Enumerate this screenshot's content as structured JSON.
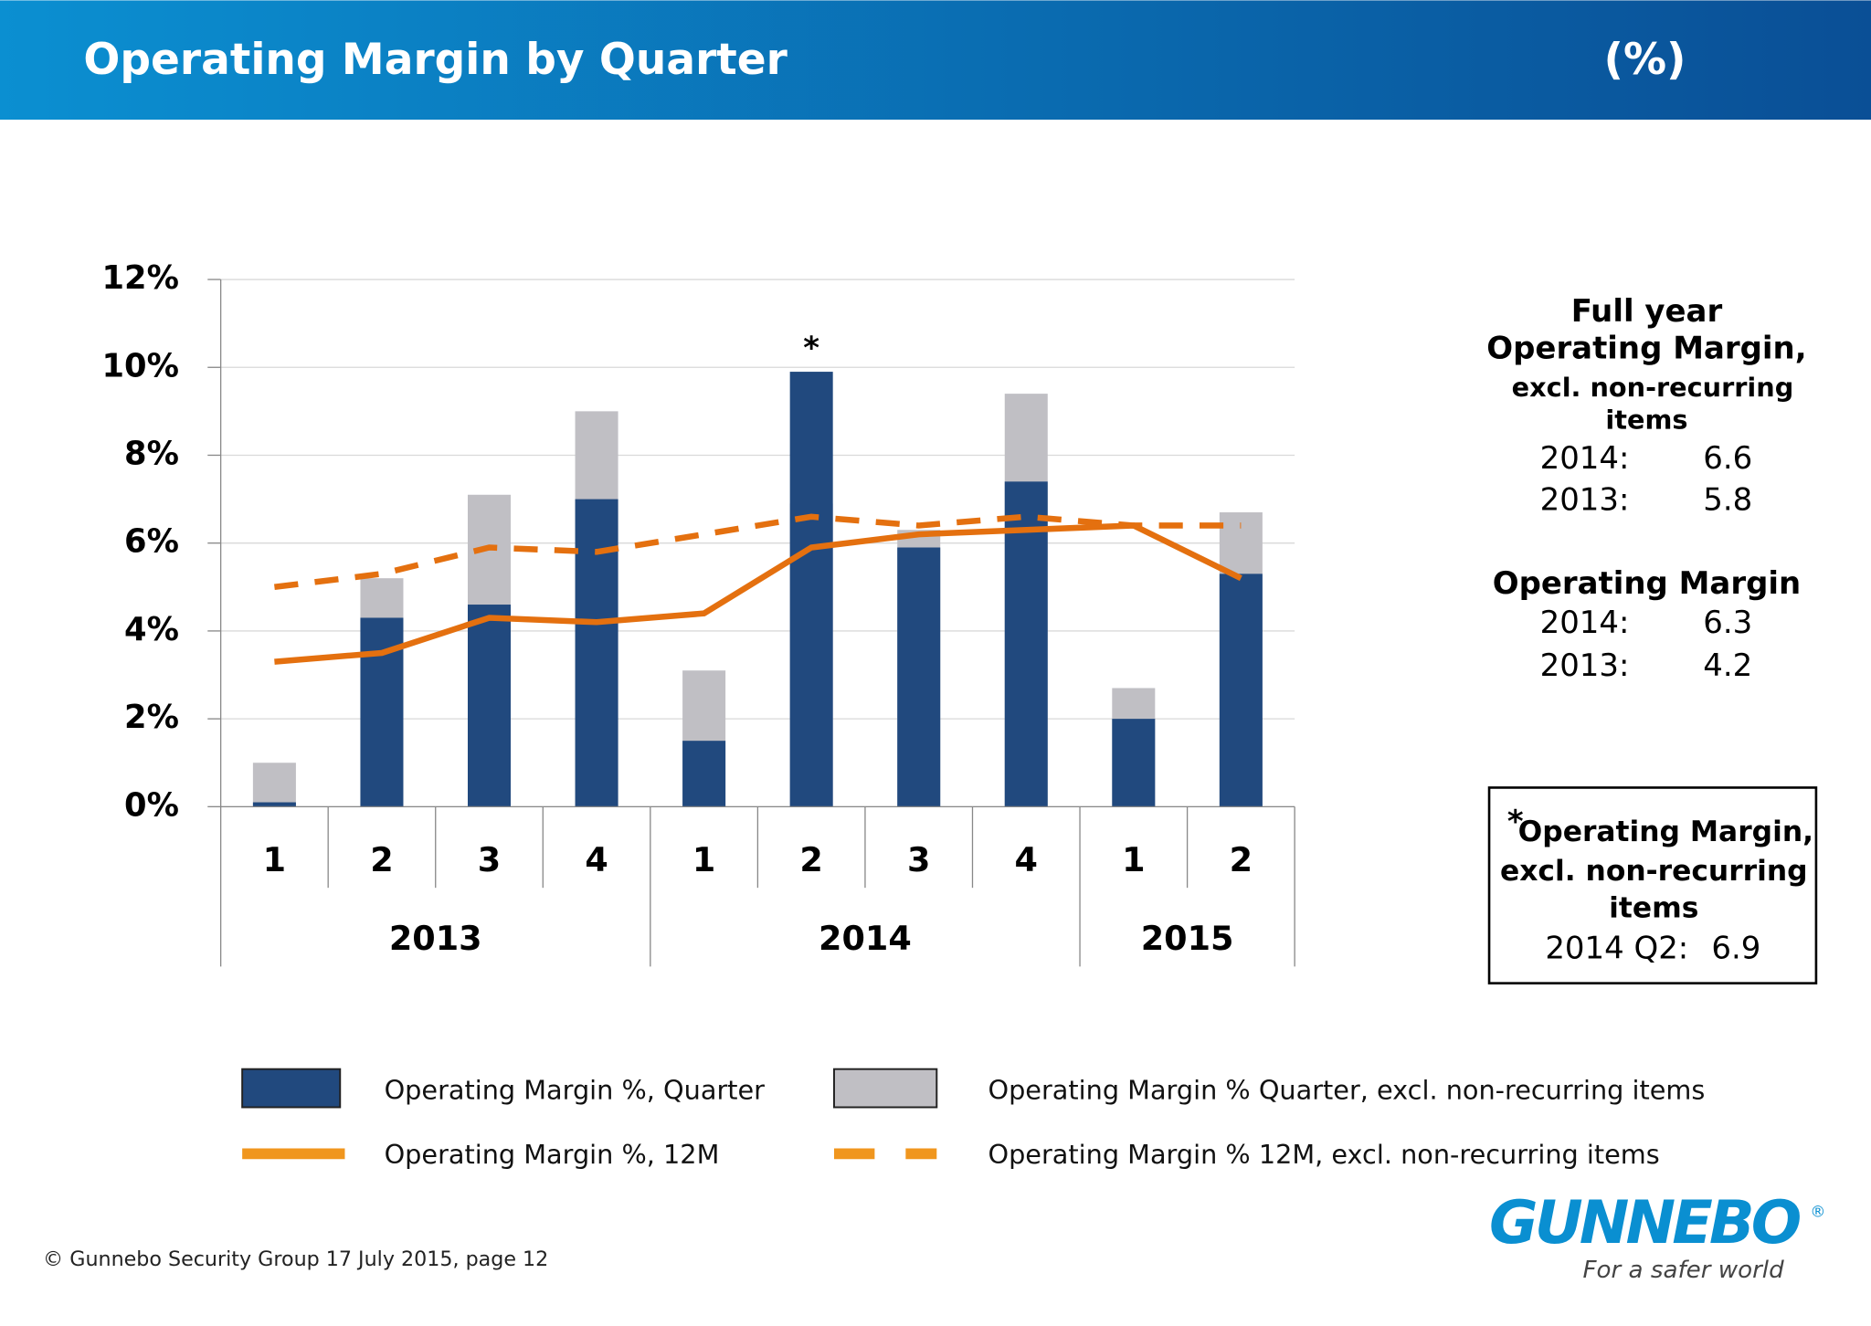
{
  "header": {
    "title": "Operating Margin by Quarter",
    "unit": "(%)"
  },
  "chart_data": {
    "type": "bar_line",
    "categories": [
      "1",
      "2",
      "3",
      "4",
      "1",
      "2",
      "3",
      "4",
      "1",
      "2"
    ],
    "category_groups": [
      "2013",
      "2013",
      "2013",
      "2013",
      "2014",
      "2014",
      "2014",
      "2014",
      "2015",
      "2015"
    ],
    "ylim": [
      0,
      12
    ],
    "yticks": [
      {
        "value": 0,
        "label": "0%"
      },
      {
        "value": 2,
        "label": "2%"
      },
      {
        "value": 4,
        "label": "4%"
      },
      {
        "value": 6,
        "label": "6%"
      },
      {
        "value": 8,
        "label": "8%"
      },
      {
        "value": 10,
        "label": "10%"
      },
      {
        "value": 12,
        "label": "12%"
      }
    ],
    "grid": true,
    "annotation": "*",
    "series": [
      {
        "name": "Operating Margin % Quarter, excl. non-recurring items",
        "kind": "bar",
        "color": "#c0bfc4",
        "values": [
          1.0,
          5.2,
          7.1,
          9.0,
          3.1,
          6.9,
          6.3,
          9.4,
          2.7,
          6.7
        ]
      },
      {
        "name": "Operating Margin %, Quarter",
        "kind": "bar",
        "color": "#21497e",
        "values": [
          0.1,
          4.3,
          4.6,
          7.0,
          1.5,
          9.9,
          5.9,
          7.4,
          2.0,
          5.3
        ]
      },
      {
        "name": "Operating Margin %, 12M",
        "kind": "line",
        "color": "#e4700f",
        "values": [
          3.3,
          3.5,
          4.3,
          4.2,
          4.4,
          5.9,
          6.2,
          6.3,
          6.4,
          5.2
        ]
      },
      {
        "name": "Operating Margin % 12M, excl. non-recurring items",
        "kind": "dashed",
        "color": "#e4700f",
        "values": [
          5.0,
          5.3,
          5.9,
          5.8,
          6.2,
          6.6,
          6.4,
          6.6,
          6.4,
          6.4
        ]
      }
    ]
  },
  "side": {
    "full_year": {
      "title": [
        "Full year",
        "Operating Margin,"
      ],
      "subtitle": [
        "excl. non-recurring",
        "items"
      ],
      "rows": [
        {
          "label": "2014:",
          "value": "6.6"
        },
        {
          "label": "2013:",
          "value": "5.8"
        }
      ]
    },
    "operating": {
      "title": "Operating Margin",
      "rows": [
        {
          "label": "2014:",
          "value": "6.3"
        },
        {
          "label": "2013:",
          "value": "4.2"
        }
      ]
    },
    "note": {
      "star": "*",
      "lines": [
        "Operating Margin,",
        "excl. non-recurring",
        "items"
      ],
      "label": "2014 Q2:",
      "value": "6.9"
    }
  },
  "footer": "© Gunnebo Security Group 17 July 2015, page 12",
  "logo": {
    "name": "GUNNEBO",
    "mark": "®",
    "tagline": "For a safer world"
  }
}
